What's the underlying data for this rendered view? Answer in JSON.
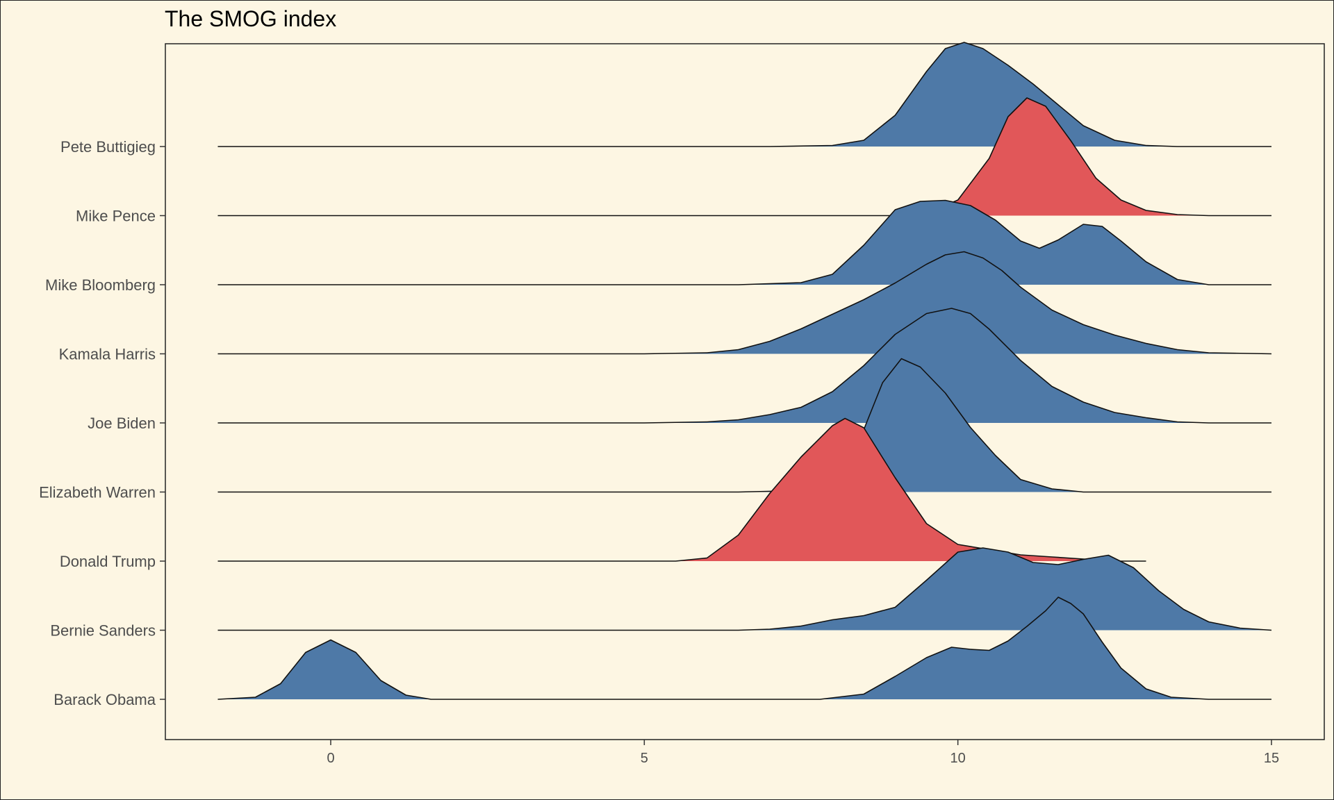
{
  "chart_data": {
    "type": "ridgeline",
    "title": "The SMOG index",
    "xlabel": "",
    "ylabel": "",
    "xlim": [
      -2.6,
      15.8
    ],
    "xticks": [
      0,
      5,
      10,
      15
    ],
    "grid": false,
    "legend": "none",
    "colors": {
      "democrat": "#4e79a7",
      "republican": "#e15759",
      "background": "#fdf6e3"
    },
    "series": [
      {
        "name": "Barack Obama",
        "party": "democrat",
        "x": [
          -1.8,
          -1.2,
          -0.8,
          -0.4,
          0,
          0.4,
          0.8,
          1.2,
          1.6,
          2,
          6,
          7,
          7.8,
          8.5,
          9,
          9.5,
          9.9,
          10.2,
          10.5,
          10.8,
          11.1,
          11.4,
          11.6,
          11.8,
          12,
          12.3,
          12.6,
          13,
          13.4,
          14,
          15
        ],
        "density": [
          0,
          0.02,
          0.15,
          0.45,
          0.57,
          0.45,
          0.18,
          0.04,
          0,
          0,
          0,
          0,
          0,
          0.05,
          0.22,
          0.4,
          0.5,
          0.48,
          0.47,
          0.56,
          0.7,
          0.85,
          0.98,
          0.92,
          0.82,
          0.55,
          0.3,
          0.1,
          0.02,
          0,
          0
        ]
      },
      {
        "name": "Bernie Sanders",
        "party": "democrat",
        "x": [
          -1.8,
          6.5,
          7,
          7.5,
          8,
          8.5,
          9,
          9.5,
          10,
          10.4,
          10.8,
          11.2,
          11.6,
          12,
          12.4,
          12.8,
          13.2,
          13.6,
          14,
          14.5,
          15
        ],
        "density": [
          0,
          0,
          0.01,
          0.04,
          0.1,
          0.14,
          0.22,
          0.48,
          0.75,
          0.79,
          0.75,
          0.65,
          0.63,
          0.68,
          0.72,
          0.6,
          0.38,
          0.2,
          0.08,
          0.02,
          0
        ]
      },
      {
        "name": "Donald Trump",
        "party": "republican",
        "x": [
          -1.8,
          5.5,
          6,
          6.5,
          7,
          7.5,
          8,
          8.2,
          8.5,
          9,
          9.5,
          10,
          10.5,
          11,
          11.5,
          12,
          12.5,
          13
        ],
        "density": [
          0,
          0,
          0.03,
          0.25,
          0.65,
          1.0,
          1.3,
          1.37,
          1.28,
          0.8,
          0.36,
          0.16,
          0.11,
          0.06,
          0.04,
          0.02,
          0,
          0
        ]
      },
      {
        "name": "Elizabeth Warren",
        "party": "democrat",
        "x": [
          -1.8,
          6.5,
          7.2,
          7.7,
          8.2,
          8.5,
          8.8,
          9.1,
          9.4,
          9.8,
          10.2,
          10.6,
          11,
          11.5,
          12,
          13,
          15
        ],
        "density": [
          0,
          0,
          0.01,
          0.05,
          0.2,
          0.6,
          1.05,
          1.28,
          1.2,
          0.95,
          0.62,
          0.35,
          0.12,
          0.03,
          0,
          0,
          0
        ]
      },
      {
        "name": "Joe Biden",
        "party": "democrat",
        "x": [
          -1.8,
          5,
          6,
          6.5,
          7,
          7.5,
          8,
          8.5,
          9,
          9.5,
          9.9,
          10.2,
          10.5,
          11,
          11.5,
          12,
          12.5,
          13,
          13.5,
          14,
          15
        ],
        "density": [
          0,
          0,
          0.01,
          0.03,
          0.08,
          0.15,
          0.3,
          0.55,
          0.85,
          1.05,
          1.1,
          1.05,
          0.9,
          0.6,
          0.35,
          0.2,
          0.1,
          0.05,
          0.01,
          0,
          0
        ]
      },
      {
        "name": "Kamala Harris",
        "party": "democrat",
        "x": [
          -1.8,
          5,
          6,
          6.5,
          7,
          7.5,
          8,
          8.5,
          9,
          9.5,
          9.8,
          10.1,
          10.4,
          10.7,
          11,
          11.5,
          12,
          12.5,
          13,
          13.5,
          14,
          15
        ],
        "density": [
          0,
          0,
          0.01,
          0.04,
          0.12,
          0.24,
          0.38,
          0.52,
          0.68,
          0.86,
          0.95,
          0.98,
          0.92,
          0.8,
          0.64,
          0.42,
          0.28,
          0.18,
          0.1,
          0.04,
          0.01,
          0
        ]
      },
      {
        "name": "Mike Bloomberg",
        "party": "democrat",
        "x": [
          -1.8,
          6.5,
          7.5,
          8,
          8.5,
          9,
          9.4,
          9.8,
          10.2,
          10.6,
          11,
          11.3,
          11.6,
          12,
          12.3,
          12.6,
          13,
          13.5,
          14,
          15
        ],
        "density": [
          0,
          0,
          0.02,
          0.1,
          0.38,
          0.72,
          0.8,
          0.81,
          0.76,
          0.62,
          0.42,
          0.35,
          0.43,
          0.58,
          0.56,
          0.42,
          0.22,
          0.05,
          0,
          0
        ]
      },
      {
        "name": "Mike Pence",
        "party": "republican",
        "x": [
          -1.8,
          9,
          9.5,
          10,
          10.5,
          10.8,
          11.1,
          11.4,
          11.8,
          12.2,
          12.6,
          13,
          13.5,
          14,
          15
        ],
        "density": [
          0,
          0,
          0.02,
          0.15,
          0.55,
          0.95,
          1.13,
          1.05,
          0.72,
          0.36,
          0.15,
          0.05,
          0.01,
          0,
          0
        ]
      },
      {
        "name": "Pete Buttigieg",
        "party": "democrat",
        "x": [
          -1.8,
          7,
          8,
          8.5,
          9,
          9.5,
          9.8,
          10.1,
          10.4,
          10.8,
          11.2,
          11.6,
          12,
          12.5,
          13,
          13.5,
          14,
          15
        ],
        "density": [
          0,
          0,
          0.01,
          0.06,
          0.3,
          0.72,
          0.94,
          1.0,
          0.94,
          0.78,
          0.6,
          0.4,
          0.2,
          0.06,
          0.01,
          0,
          0,
          0
        ]
      }
    ]
  }
}
